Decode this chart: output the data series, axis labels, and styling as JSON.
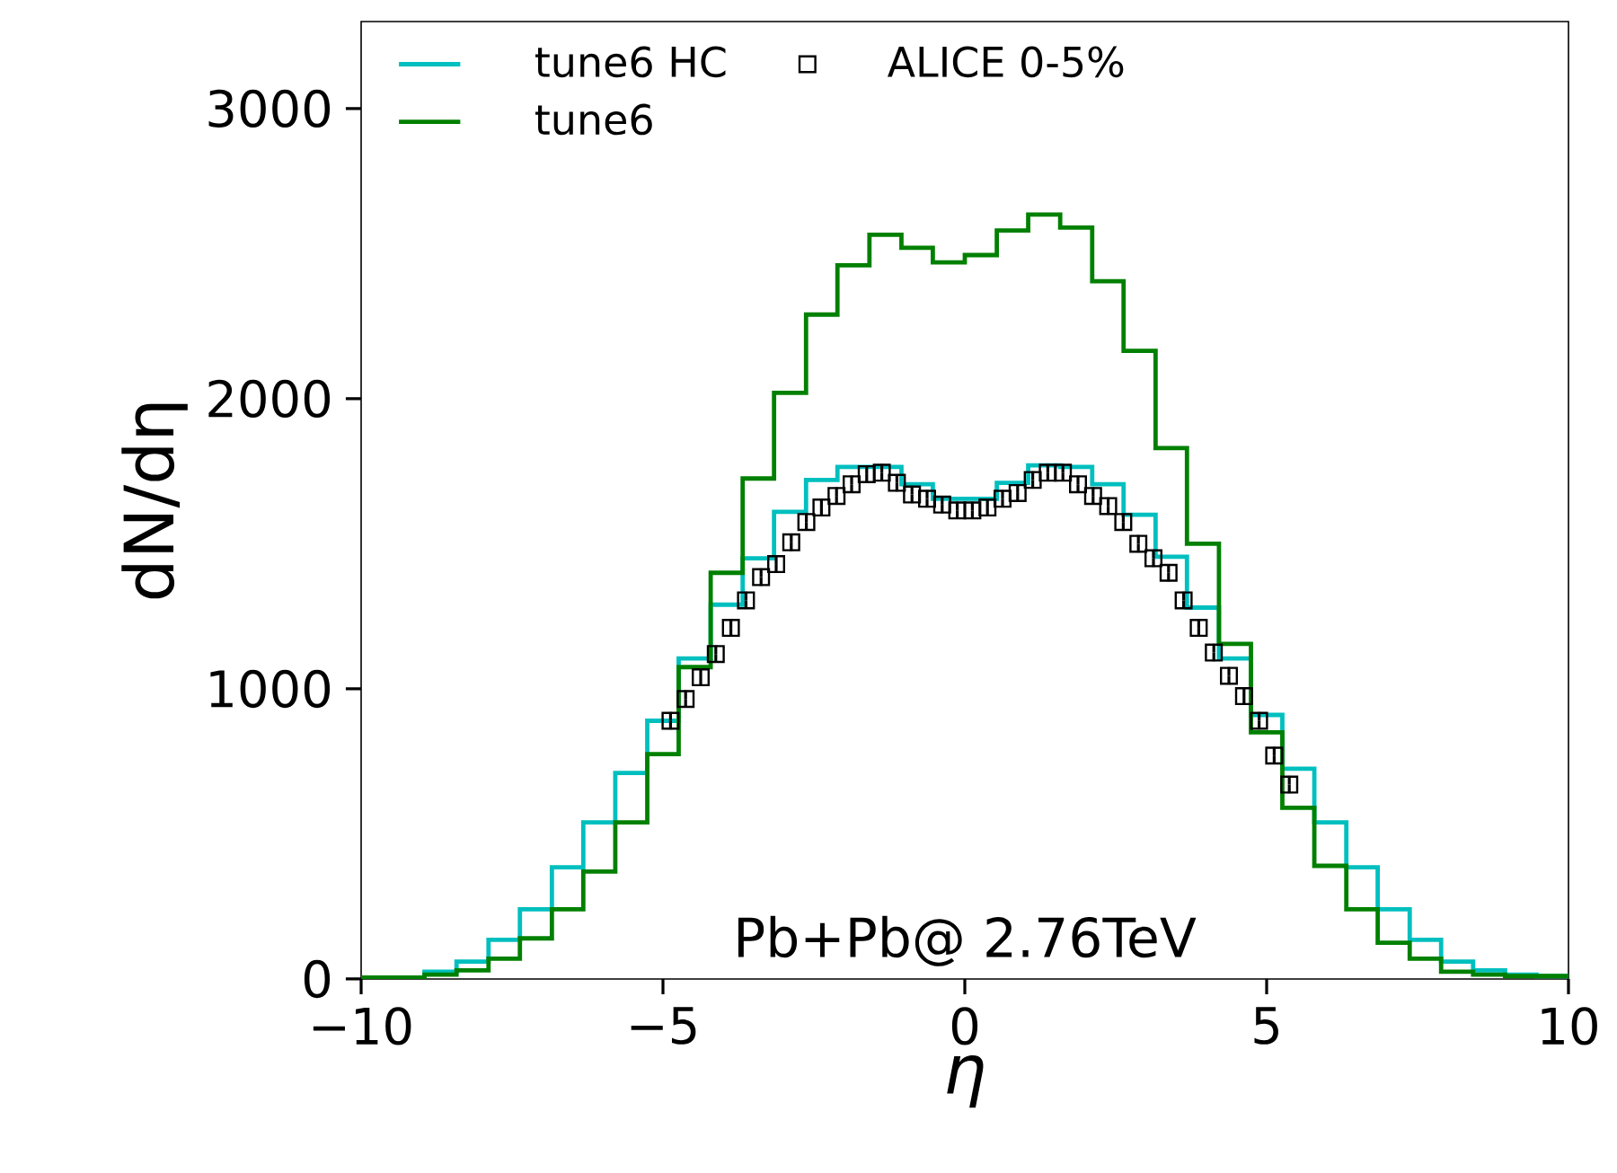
{
  "chart_data": {
    "type": "histogram",
    "xlabel": "*η*",
    "ylabel": "dN/dη",
    "bins": [
      -10,
      -9.47,
      -8.95,
      -8.42,
      -7.89,
      -7.37,
      -6.84,
      -6.32,
      -5.79,
      -5.26,
      -4.74,
      -4.21,
      -3.68,
      -3.16,
      -2.63,
      -2.11,
      -1.58,
      -1.05,
      -0.53,
      0,
      0.53,
      1.05,
      1.58,
      2.11,
      2.63,
      3.16,
      3.68,
      4.21,
      4.74,
      5.26,
      5.79,
      6.32,
      6.84,
      7.37,
      7.89,
      8.42,
      8.95,
      9.47,
      10
    ],
    "series": [
      {
        "name": "tune6 HC",
        "color": "#00bfbf",
        "values": [
          5,
          5,
          25,
          60,
          135,
          240,
          385,
          540,
          710,
          890,
          1105,
          1290,
          1450,
          1610,
          1720,
          1765,
          1765,
          1705,
          1655,
          1655,
          1710,
          1770,
          1765,
          1705,
          1600,
          1455,
          1280,
          1105,
          910,
          725,
          540,
          385,
          240,
          135,
          60,
          30,
          15,
          10
        ]
      },
      {
        "name": "tune6",
        "color": "#008000",
        "values": [
          5,
          5,
          15,
          30,
          70,
          140,
          240,
          370,
          540,
          775,
          1075,
          1400,
          1725,
          2020,
          2290,
          2460,
          2565,
          2520,
          2470,
          2495,
          2580,
          2635,
          2590,
          2405,
          2165,
          1830,
          1500,
          1155,
          850,
          590,
          390,
          240,
          125,
          70,
          25,
          15,
          10,
          10
        ]
      },
      {
        "name": "ALICE 0-5%",
        "type": "scatter",
        "color": "#000000",
        "marker": "square",
        "x": [
          -4.875,
          -4.625,
          -4.375,
          -4.125,
          -3.875,
          -3.625,
          -3.375,
          -3.125,
          -2.875,
          -2.625,
          -2.375,
          -2.125,
          -1.875,
          -1.625,
          -1.375,
          -1.125,
          -0.875,
          -0.625,
          -0.375,
          -0.125,
          0.125,
          0.375,
          0.625,
          0.875,
          1.125,
          1.375,
          1.625,
          1.875,
          2.125,
          2.375,
          2.625,
          2.875,
          3.125,
          3.375,
          3.625,
          3.875,
          4.125,
          4.375,
          4.625,
          4.875,
          5.125,
          5.375
        ],
        "values": [
          890,
          965,
          1040,
          1120,
          1210,
          1305,
          1385,
          1430,
          1505,
          1575,
          1625,
          1665,
          1705,
          1740,
          1745,
          1710,
          1670,
          1655,
          1635,
          1615,
          1615,
          1625,
          1655,
          1675,
          1720,
          1745,
          1745,
          1705,
          1665,
          1630,
          1575,
          1500,
          1450,
          1400,
          1305,
          1210,
          1125,
          1045,
          975,
          890,
          770,
          670
        ],
        "errors": [
          30,
          30,
          30,
          30,
          30,
          30,
          30,
          30,
          30,
          30,
          30,
          30,
          30,
          30,
          30,
          30,
          30,
          30,
          30,
          30,
          30,
          30,
          30,
          30,
          30,
          30,
          30,
          30,
          30,
          30,
          30,
          30,
          30,
          30,
          30,
          30,
          30,
          30,
          30,
          30,
          30,
          30
        ]
      }
    ],
    "xlim": [
      -10,
      10
    ],
    "ylim": [
      0,
      3300
    ],
    "xticks": [
      {
        "value": -10,
        "label": "−10"
      },
      {
        "value": -5,
        "label": "−5"
      },
      0,
      5,
      10
    ],
    "yticks": [
      0,
      1000,
      2000,
      3000
    ],
    "legend": "top left",
    "grid": false,
    "annotations": [
      "Pb+Pb@ 2.76TeV"
    ]
  }
}
